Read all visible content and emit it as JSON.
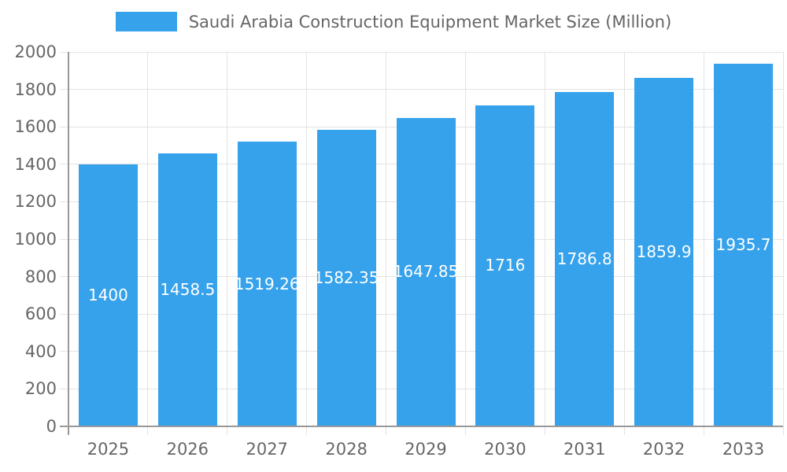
{
  "legend": {
    "position": "top",
    "swatch_color": "#36A2EB"
  },
  "chart_data": {
    "type": "bar",
    "title": "Saudi Arabia Construction Equipment Market Size (Million)",
    "xlabel": "",
    "ylabel": "",
    "categories": [
      "2025",
      "2026",
      "2027",
      "2028",
      "2029",
      "2030",
      "2031",
      "2032",
      "2033"
    ],
    "values": [
      1400,
      1458.5,
      1519.26,
      1582.35,
      1647.85,
      1716,
      1786.8,
      1859.9,
      1935.7
    ],
    "value_labels": [
      "1400",
      "1458.5",
      "1519.26",
      "1582.35",
      "1647.85",
      "1716",
      "1786.8",
      "1859.9",
      "1935.7"
    ],
    "ylim": [
      0,
      2000
    ],
    "ytick_step": 200,
    "ytick_labels": [
      "0",
      "200",
      "400",
      "600",
      "800",
      "1000",
      "1200",
      "1400",
      "1600",
      "1800",
      "2000"
    ],
    "grid": true,
    "legend_position": "top",
    "colors": {
      "bar": "#36A2EB",
      "bar_label_text": "#FFFFFF",
      "axis_text": "#666666",
      "gridline": "#E3E3E3",
      "axis_line": "#999999",
      "background": "#FFFFFF"
    }
  }
}
